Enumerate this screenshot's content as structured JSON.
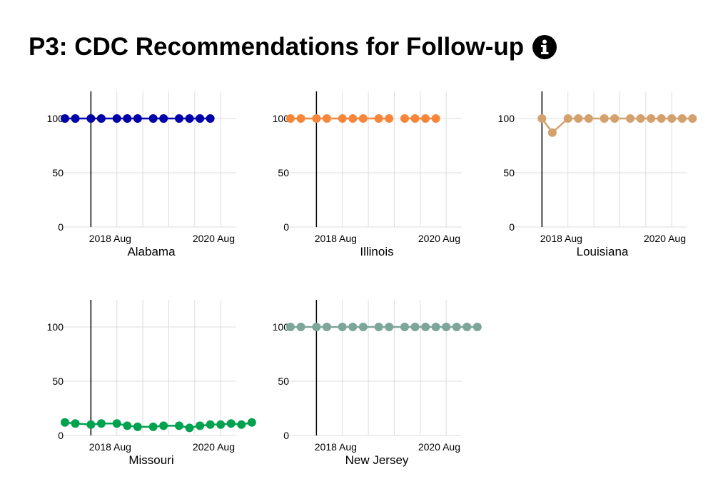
{
  "page": {
    "title": "P3: CDC Recommendations for Follow-up",
    "info_icon": "info-icon"
  },
  "chart_data": [
    {
      "type": "line",
      "title": "Alabama",
      "color": "#0000a8",
      "x_tick_labels": [
        "2018 Aug",
        "2020 Aug"
      ],
      "x_range_months": [
        "2018-03",
        "2020-12"
      ],
      "marker_line": "2018-08",
      "ylim": [
        0,
        125
      ],
      "y_ticks": [
        0,
        50,
        100
      ],
      "grid": true,
      "series": [
        {
          "x": [
            "2018-03",
            "2018-05",
            "2018-08",
            "2018-10",
            "2019-01",
            "2019-03",
            "2019-05",
            "2019-08",
            "2019-10",
            "2020-01",
            "2020-03",
            "2020-05",
            "2020-07"
          ],
          "y": [
            100,
            100,
            100,
            100,
            100,
            100,
            100,
            100,
            100,
            100,
            100,
            100,
            100
          ]
        }
      ]
    },
    {
      "type": "line",
      "title": "Illinois",
      "color": "#f7863a",
      "x_tick_labels": [
        "2018 Aug",
        "2020 Aug"
      ],
      "x_range_months": [
        "2018-03",
        "2020-12"
      ],
      "marker_line": "2018-08",
      "ylim": [
        0,
        125
      ],
      "y_ticks": [
        0,
        50,
        100
      ],
      "grid": true,
      "series": [
        {
          "x": [
            "2018-03",
            "2018-05",
            "2018-08",
            "2018-10",
            "2019-01",
            "2019-03",
            "2019-05",
            "2019-08",
            "2019-10"
          ],
          "y": [
            100,
            100,
            100,
            100,
            100,
            100,
            100,
            100,
            100
          ]
        },
        {
          "x": [
            "2020-01",
            "2020-03",
            "2020-05",
            "2020-07"
          ],
          "y": [
            100,
            100,
            100,
            100
          ]
        }
      ]
    },
    {
      "type": "line",
      "title": "Louisiana",
      "color": "#d4a06c",
      "x_tick_labels": [
        "2018 Aug",
        "2020 Aug"
      ],
      "x_range_months": [
        "2018-03",
        "2020-12"
      ],
      "marker_line": "2018-08",
      "ylim": [
        0,
        125
      ],
      "y_ticks": [
        0,
        50,
        100
      ],
      "grid": true,
      "series": [
        {
          "x": [
            "2018-08",
            "2018-10",
            "2019-01",
            "2019-03",
            "2019-05",
            "2019-08",
            "2019-10",
            "2020-01",
            "2020-03",
            "2020-05",
            "2020-07",
            "2020-09",
            "2020-11",
            "2021-01"
          ],
          "y": [
            100,
            87,
            100,
            100,
            100,
            100,
            100,
            100,
            100,
            100,
            100,
            100,
            100,
            100
          ]
        }
      ]
    },
    {
      "type": "line",
      "title": "Missouri",
      "color": "#00a24f",
      "x_tick_labels": [
        "2018 Aug",
        "2020 Aug"
      ],
      "x_range_months": [
        "2018-03",
        "2020-12"
      ],
      "marker_line": "2018-08",
      "ylim": [
        0,
        125
      ],
      "y_ticks": [
        0,
        50,
        100
      ],
      "grid": true,
      "series": [
        {
          "x": [
            "2018-03",
            "2018-05",
            "2018-08",
            "2018-10",
            "2019-01",
            "2019-03",
            "2019-05",
            "2019-08",
            "2019-10",
            "2020-01",
            "2020-03",
            "2020-05",
            "2020-07",
            "2020-09",
            "2020-11",
            "2021-01",
            "2021-03"
          ],
          "y": [
            12,
            11,
            10,
            11,
            11,
            9,
            8,
            8,
            9,
            9,
            7,
            9,
            10,
            10,
            11,
            10,
            12
          ]
        }
      ]
    },
    {
      "type": "line",
      "title": "New Jersey",
      "color": "#7da59a",
      "x_tick_labels": [
        "2018 Aug",
        "2020 Aug"
      ],
      "x_range_months": [
        "2018-03",
        "2020-12"
      ],
      "marker_line": "2018-08",
      "ylim": [
        0,
        125
      ],
      "y_ticks": [
        0,
        50,
        100
      ],
      "grid": true,
      "series": [
        {
          "x": [
            "2018-03",
            "2018-05",
            "2018-08",
            "2018-10",
            "2019-01",
            "2019-03",
            "2019-05",
            "2019-08",
            "2019-10",
            "2020-01",
            "2020-03",
            "2020-05",
            "2020-07",
            "2020-09",
            "2020-11",
            "2021-01",
            "2021-03"
          ],
          "y": [
            100,
            100,
            100,
            100,
            100,
            100,
            100,
            100,
            100,
            100,
            100,
            100,
            100,
            100,
            100,
            100,
            100
          ]
        }
      ]
    }
  ]
}
